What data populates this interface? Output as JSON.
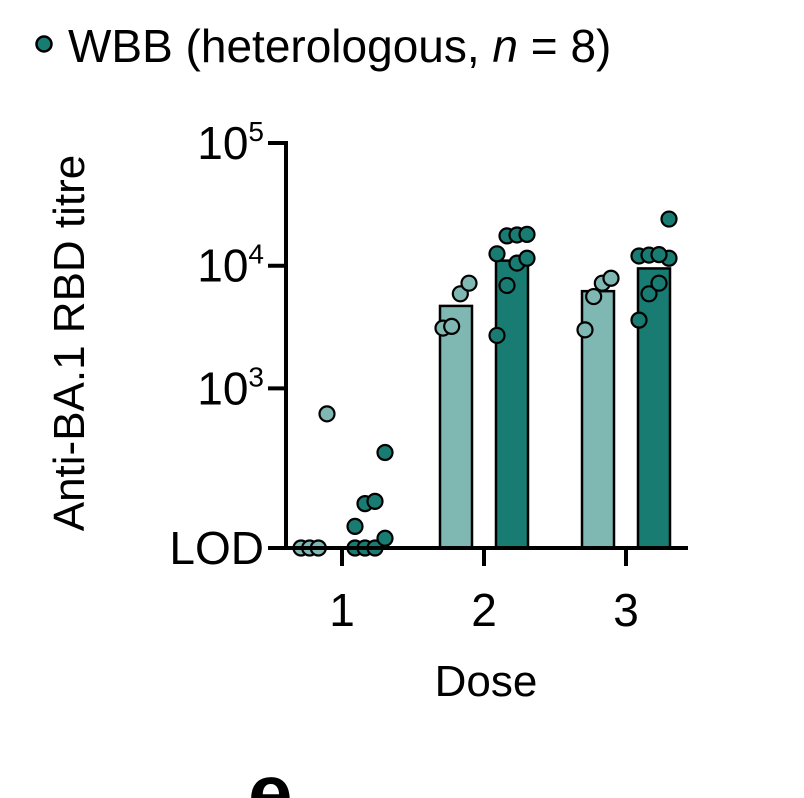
{
  "legend": {
    "label_prefix": "WBB (heterologous, ",
    "label_n_symbol": "n",
    "label_suffix": " = 8)"
  },
  "panel_label": "e",
  "colors": {
    "light_teal": "#7fb8b3",
    "dark_teal": "#187c72",
    "axis": "#000000"
  },
  "chart_data": {
    "type": "bar",
    "scale": "log",
    "xlabel": "Dose",
    "ylabel": "Anti-BA.1 RBD titre",
    "categories": [
      "1",
      "2",
      "3"
    ],
    "y_ticks": [
      {
        "value": 50,
        "label": "LOD",
        "exp": ""
      },
      {
        "value": 1000,
        "label": "10",
        "exp": "3"
      },
      {
        "value": 10000,
        "label": "10",
        "exp": "4"
      },
      {
        "value": 100000,
        "label": "10",
        "exp": "5"
      }
    ],
    "ylim": [
      50,
      100000
    ],
    "series": [
      {
        "color_key": "light_teal",
        "bar_values": [
          50,
          4700,
          6200
        ],
        "points": [
          [
            50,
            50,
            50,
            620
          ],
          [
            3100,
            3200,
            5900,
            7200
          ],
          [
            3000,
            5600,
            7200,
            7900
          ]
        ]
      },
      {
        "name": "WBB (heterologous, n = 8)",
        "color_key": "dark_teal",
        "bar_values": [
          50,
          11000,
          9500
        ],
        "points": [
          [
            50,
            50,
            50,
            60,
            75,
            115,
            120,
            300
          ],
          [
            2700,
            6900,
            10500,
            11500,
            12500,
            17500,
            17800,
            18000
          ],
          [
            3600,
            5900,
            7200,
            11500,
            12000,
            12200,
            12300,
            24000
          ]
        ]
      }
    ]
  }
}
